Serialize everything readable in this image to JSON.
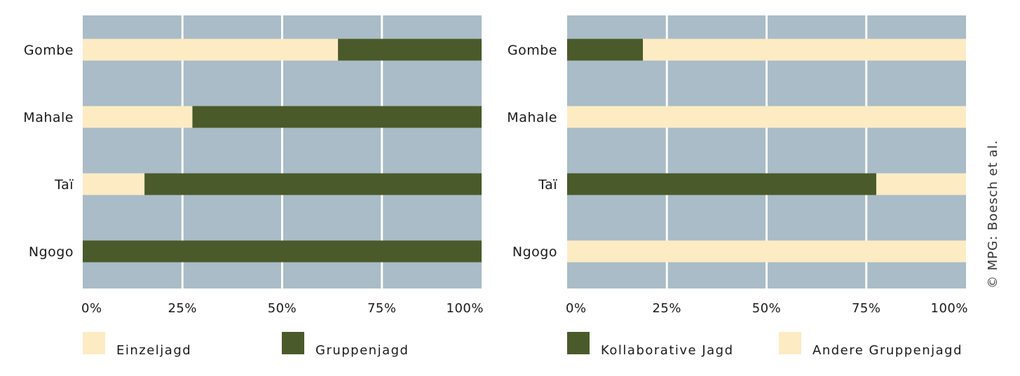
{
  "credit": "© MPG: Boesch et al.",
  "colors": {
    "background": "#a9bcc7",
    "gridline": "#ffffff",
    "cream": "#fdebc4",
    "dark_green": "#4a5a2a"
  },
  "chart_data": [
    {
      "type": "bar",
      "orientation": "horizontal",
      "stacked": true,
      "categories": [
        "Gombe",
        "Mahale",
        "Taï",
        "Ngogo"
      ],
      "series": [
        {
          "name": "Einzeljagd",
          "color": "#fdebc4",
          "values": [
            64,
            27.5,
            15.5,
            0
          ]
        },
        {
          "name": "Gruppenjagd",
          "color": "#4a5a2a",
          "values": [
            36,
            72.5,
            84.5,
            100
          ]
        }
      ],
      "x_ticks": [
        "0%",
        "25%",
        "50%",
        "75%",
        "100%"
      ],
      "xlim": [
        0,
        100
      ],
      "grid": true,
      "legend": {
        "position": "bottom",
        "items": [
          {
            "label": "Einzeljagd",
            "color": "#fdebc4"
          },
          {
            "label": "Gruppenjagd",
            "color": "#4a5a2a"
          }
        ]
      }
    },
    {
      "type": "bar",
      "orientation": "horizontal",
      "stacked": true,
      "categories": [
        "Gombe",
        "Mahale",
        "Taï",
        "Ngogo"
      ],
      "series": [
        {
          "name": "Kollaborative Jagd",
          "color": "#4a5a2a",
          "values": [
            19,
            0,
            77.5,
            0
          ]
        },
        {
          "name": "Andere Gruppenjagd",
          "color": "#fdebc4",
          "values": [
            81,
            100,
            22.5,
            100
          ]
        }
      ],
      "x_ticks": [
        "0%",
        "25%",
        "50%",
        "75%",
        "100%"
      ],
      "xlim": [
        0,
        100
      ],
      "grid": true,
      "legend": {
        "position": "bottom",
        "items": [
          {
            "label": "Kollaborative Jagd",
            "color": "#4a5a2a"
          },
          {
            "label": "Andere Gruppenjagd",
            "color": "#fdebc4"
          }
        ]
      }
    }
  ]
}
